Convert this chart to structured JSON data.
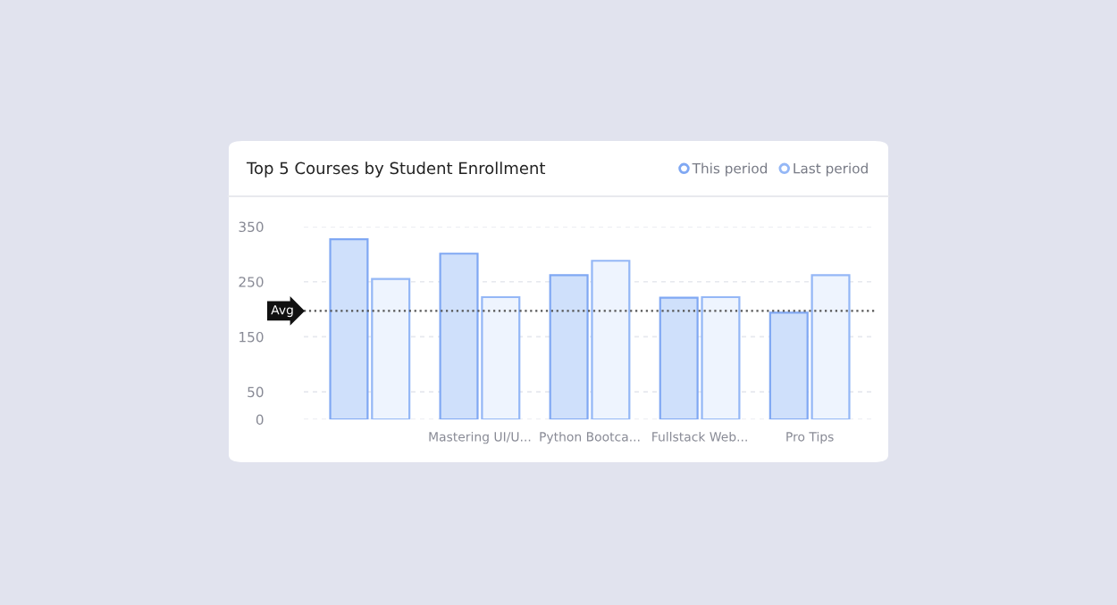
{
  "chart_data": {
    "type": "bar",
    "title": "Top 5 Courses by Student Enrollment",
    "categories": [
      null,
      "Mastering UI/U...",
      "Python Bootca...",
      "Fullstack Web...",
      "Pro Tips"
    ],
    "series": [
      {
        "name": "This period",
        "color": "#cfe0fb",
        "values": [
          327,
          301,
          262,
          221,
          194
        ]
      },
      {
        "name": "Last period",
        "color": "#eef4fe",
        "values": [
          255,
          222,
          288,
          222,
          262
        ]
      }
    ],
    "ylim": [
      0,
      350
    ],
    "yticks": [
      0,
      50,
      150,
      250,
      350
    ],
    "ref_lines": [
      {
        "axis": "y",
        "value": 197,
        "label": "Avg",
        "color": "#555555",
        "line_style": "dotted"
      }
    ],
    "grid": "y",
    "legend": "top right"
  }
}
